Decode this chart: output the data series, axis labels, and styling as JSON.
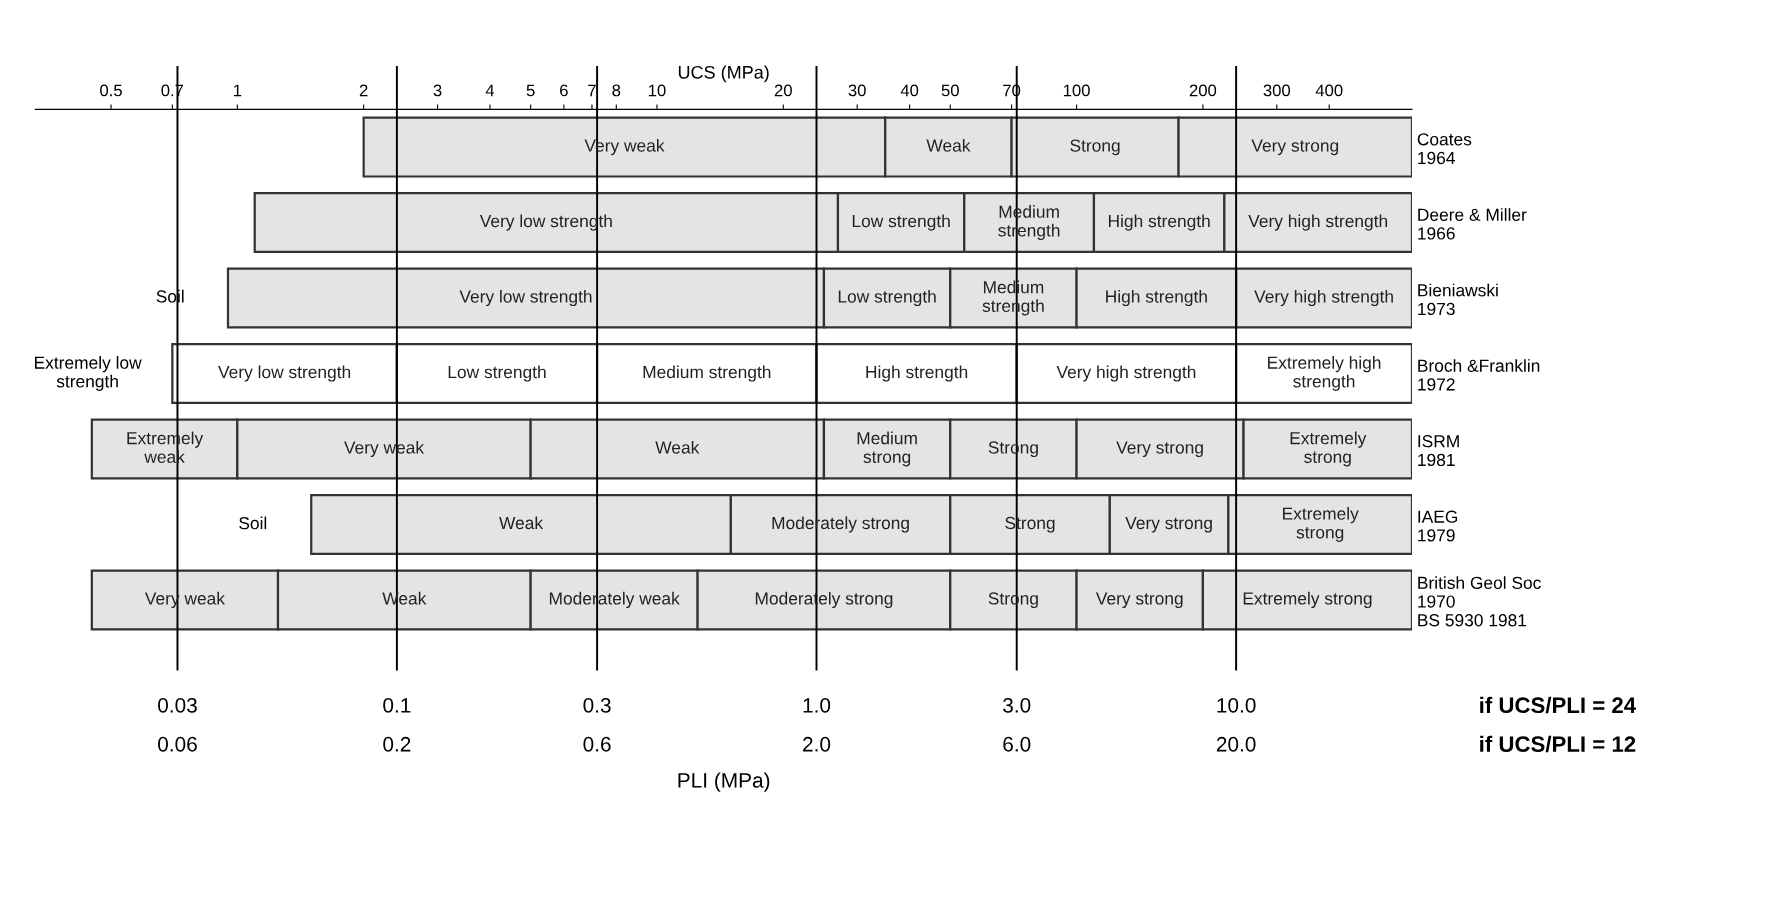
{
  "chart_data": {
    "type": "bar",
    "orientation": "horizontal",
    "log": "x",
    "xlabel": "UCS (MPa)",
    "categories": [
      "Coates\n1964",
      "Deere & Miller\n1966",
      "Bieniawski\n1973",
      "Broch &Franklin\n1972",
      "ISRM\n1981",
      "IAEG\n1979",
      "British Geol Soc\n1970\nBS 5930 1981"
    ],
    "xlim": [
      0.33,
      630
    ],
    "xticks": [
      0.5,
      0.7,
      1,
      2,
      3,
      4,
      5,
      6,
      7,
      8,
      10,
      20,
      30,
      40,
      50,
      70,
      100,
      200,
      300,
      400
    ],
    "series": [
      {
        "base": [
          2,
          1.1,
          0.95,
          0.7,
          0.45,
          1.5,
          0.45
        ],
        "values": [
          33,
          25.9,
          24.05,
          1.7,
          0.55,
          13.5,
          0.8
        ],
        "value_labels": [
          "Very weak",
          "Very low strength",
          "Very low strength",
          "Very low strength",
          "Extremely\nweak",
          "Weak",
          "Very weak"
        ],
        "colors": [
          "#e4e4e4",
          "#e4e4e4",
          "#e4e4e4",
          "#ffffff",
          "#e4e4e4",
          "#e4e4e4",
          "#e4e4e4"
        ]
      },
      {
        "base": [
          35,
          27,
          25,
          2.4,
          1,
          15,
          1.25
        ],
        "values": [
          35,
          27,
          25,
          4.8,
          4,
          35,
          3.75
        ],
        "value_labels": [
          "Weak",
          "Low strength",
          "Low strength",
          "Low strength",
          "Very weak",
          "Moderately strong",
          "Weak"
        ],
        "colors": [
          "#e4e4e4",
          "#e4e4e4",
          "#e4e4e4",
          "#ffffff",
          "#e4e4e4",
          "#e4e4e4",
          "#e4e4e4"
        ]
      },
      {
        "base": [
          70,
          54,
          50,
          7.2,
          5,
          50,
          5
        ],
        "values": [
          105,
          56,
          50,
          16.8,
          20,
          70,
          7.5
        ],
        "value_labels": [
          "Strong",
          "Medium\nstrength",
          "Medium\nstrength",
          "Medium strength",
          "Weak",
          "Strong",
          "Moderately weak"
        ],
        "colors": [
          "#e4e4e4",
          "#e4e4e4",
          "#e4e4e4",
          "#ffffff",
          "#e4e4e4",
          "#e4e4e4",
          "#e4e4e4"
        ]
      },
      {
        "base": [
          175,
          110,
          100,
          24,
          25,
          120,
          12.5
        ],
        "values": [
          455,
          115,
          140,
          48,
          25,
          110,
          37.5
        ],
        "value_labels": [
          "Very strong",
          "High strength",
          "High strength",
          "High strength",
          "Medium\nstrong",
          "Very strong",
          "Moderately strong"
        ],
        "colors": [
          "#e4e4e4",
          "#e4e4e4",
          "#e4e4e4",
          "#ffffff",
          "#e4e4e4",
          "#e4e4e4",
          "#e4e4e4"
        ]
      },
      {
        "base": [
          null,
          225,
          240,
          72,
          50,
          230,
          50
        ],
        "values": [
          null,
          405,
          390,
          168,
          50,
          400,
          50
        ],
        "value_labels": [
          null,
          "Very high strength",
          "Very high strength",
          "Very high strength",
          "Strong",
          "Extremely\nstrong",
          "Strong"
        ],
        "colors": [
          "#e4e4e4",
          "#e4e4e4",
          "#e4e4e4",
          "#ffffff",
          "#e4e4e4",
          "#e4e4e4",
          "#e4e4e4"
        ]
      },
      {
        "base": [
          null,
          null,
          null,
          240,
          100,
          null,
          100
        ],
        "values": [
          null,
          null,
          null,
          390,
          150,
          null,
          100
        ],
        "value_labels": [
          null,
          null,
          null,
          "Extremely high\nstrength",
          "Very strong",
          null,
          "Very strong"
        ],
        "colors": [
          "#e4e4e4",
          "#e4e4e4",
          "#e4e4e4",
          "#ffffff",
          "#e4e4e4",
          "#e4e4e4",
          "#e4e4e4"
        ]
      },
      {
        "base": [
          null,
          null,
          null,
          null,
          250,
          null,
          200
        ],
        "values": [
          null,
          null,
          null,
          null,
          380,
          null,
          430
        ],
        "value_labels": [
          null,
          null,
          null,
          null,
          "Extremely\nstrong",
          null,
          "Extremely strong"
        ],
        "colors": [
          "#e4e4e4",
          "#e4e4e4",
          "#e4e4e4",
          "#ffffff",
          "#e4e4e4",
          "#e4e4e4",
          "#e4e4e4"
        ]
      }
    ],
    "ref_lines": [
      {
        "axis": "x",
        "value": 0.72
      },
      {
        "axis": "x",
        "value": 2.4
      },
      {
        "axis": "x",
        "value": 7.2
      },
      {
        "axis": "x",
        "value": 24
      },
      {
        "axis": "x",
        "value": 72
      },
      {
        "axis": "x",
        "value": 240
      }
    ],
    "annotations": [
      "Soil",
      "Extremely low\nstrength",
      "Soil",
      "0.03",
      "0.1",
      "0.3",
      "1.0",
      "3.0",
      "10.0",
      "if UCS/PLI = 24",
      "0.06",
      "0.2",
      "0.6",
      "2.0",
      "6.0",
      "20.0",
      "if UCS/PLI = 12",
      "PLI (MPa)"
    ],
    "grid": false
  }
}
